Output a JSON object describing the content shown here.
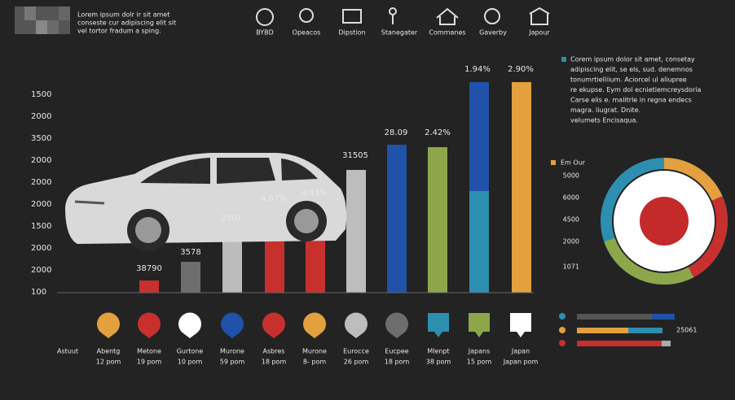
{
  "header": {
    "logo_lines": [
      "Lorem ipsum dolr ir sit amet",
      "conseste cur adipiscing elit sit",
      "vel tortor fradum a sping."
    ],
    "nav": [
      "BYBD",
      "Opeacos",
      "Dipstion",
      "Stanegater",
      "Commanes",
      "Gaverby",
      "Japour"
    ]
  },
  "y_axis_labels": [
    "1500",
    "2000",
    "3500",
    "2000",
    "2000",
    "2000",
    "1500",
    "2000",
    "2000",
    "100"
  ],
  "bar_labels": [
    "38790",
    "3578",
    "2501",
    "4.87%",
    "4.45%",
    "31505",
    "28.09",
    "2.42%",
    "1.94%",
    "2.90%"
  ],
  "row_caption": "Astuut",
  "columns": [
    {
      "name": "Abentg",
      "sub": "12 pom"
    },
    {
      "name": "Metone",
      "sub": "19 pom"
    },
    {
      "name": "Gurtone",
      "sub": "10 pom"
    },
    {
      "name": "Murone",
      "sub": "59 pom"
    },
    {
      "name": "Asbres",
      "sub": "18 pom"
    },
    {
      "name": "Murone",
      "sub": "8- pom"
    },
    {
      "name": "Eurocce",
      "sub": "26 pom"
    },
    {
      "name": "Eucpee",
      "sub": "18 pom"
    },
    {
      "name": "Mlenpt",
      "sub": "38 pom"
    },
    {
      "name": "Japans",
      "sub": "15 pom"
    },
    {
      "name": "Japan",
      "sub": "Japan pom"
    }
  ],
  "description": [
    "Corem ipsum dolor sit amet, consetay",
    "adipiscing elit, se els, sud. denemnos",
    "tonumrtielliium. Aciorcel ul aliupree",
    "re ekupse. Eym dol ecnietiemcreysdoria",
    "Carse elis e. malitrle in regna endecs",
    "magra. liugrat. Dnite.",
    "velumets Encisaqua."
  ],
  "donut": {
    "legend": "Em Our",
    "labels": [
      "5000",
      "6000",
      "4500",
      "2000",
      "1071"
    ]
  },
  "mini_bars_label": "25061"
}
